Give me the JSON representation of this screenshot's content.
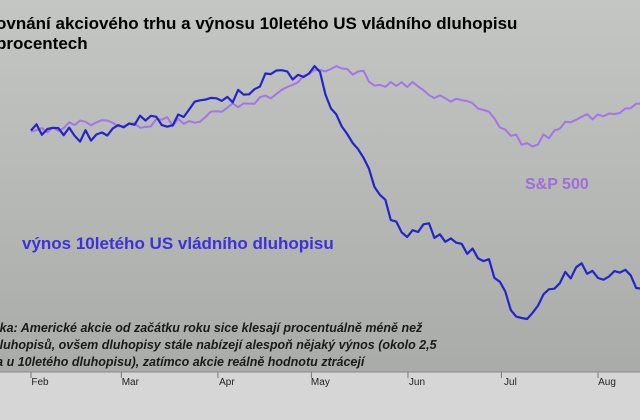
{
  "title_lines": [
    "ovnání akciového trhu a výnosu 10letého US vládního dluhopisu",
    "procentech"
  ],
  "note": "nka: Americké akcie od začátku roku sice klesají procentuálně méně než\n dluhopisů, ovšem dluhopisy stále nabízejí alespoň nějaký výnos (okolo 2,5\nta u 10letého dluhopisu), zatímco akcie reálně hodnotu ztrácejí",
  "colors": {
    "sp500": "#a375e8",
    "bond": "#2424c8",
    "background": "#b8bab8",
    "axis_band": "#d6d6d6"
  },
  "chart_data": {
    "type": "line",
    "title": "ovnání akciového trhu a výnosu 10letého US vládního dluhopisu procentech",
    "x": [
      "2008-02-01",
      "2008-02-08",
      "2008-02-15",
      "2008-02-22",
      "2008-02-29",
      "2008-03-07",
      "2008-03-14",
      "2008-03-21",
      "2008-03-28",
      "2008-04-04",
      "2008-04-11",
      "2008-04-18",
      "2008-04-25",
      "2008-05-02",
      "2008-05-09",
      "2008-05-16",
      "2008-05-23",
      "2008-05-30",
      "2008-06-06",
      "2008-06-13",
      "2008-06-20",
      "2008-06-27",
      "2008-07-04",
      "2008-07-11",
      "2008-07-18",
      "2008-07-25",
      "2008-08-01",
      "2008-08-08",
      "2008-08-15",
      "2008-08-22",
      "2008-08-29"
    ],
    "x_tick_labels": [
      "Feb",
      "Mar",
      "Apr",
      "May",
      "Jun",
      "Jul",
      "Aug"
    ],
    "xlabel": "",
    "ylabel": "",
    "grid": false,
    "legend": "none",
    "series": [
      {
        "name": "S&P 500",
        "values": [
          61,
          58,
          56,
          54,
          57,
          58,
          52,
          55,
          50,
          43,
          40,
          36,
          26,
          15,
          12,
          16,
          26,
          24,
          30,
          36,
          38,
          46,
          64,
          72,
          60,
          52,
          48,
          47,
          40,
          37,
          44
        ]
      },
      {
        "name": "výnos 10letého US vládního dluhopisu",
        "values": [
          60,
          58,
          64,
          63,
          56,
          49,
          56,
          50,
          37,
          35,
          33,
          18,
          22,
          12,
          48,
          74,
          108,
          136,
          130,
          143,
          152,
          156,
          194,
          196,
          178,
          162,
          170,
          166,
          178,
          186,
          210
        ]
      }
    ]
  }
}
